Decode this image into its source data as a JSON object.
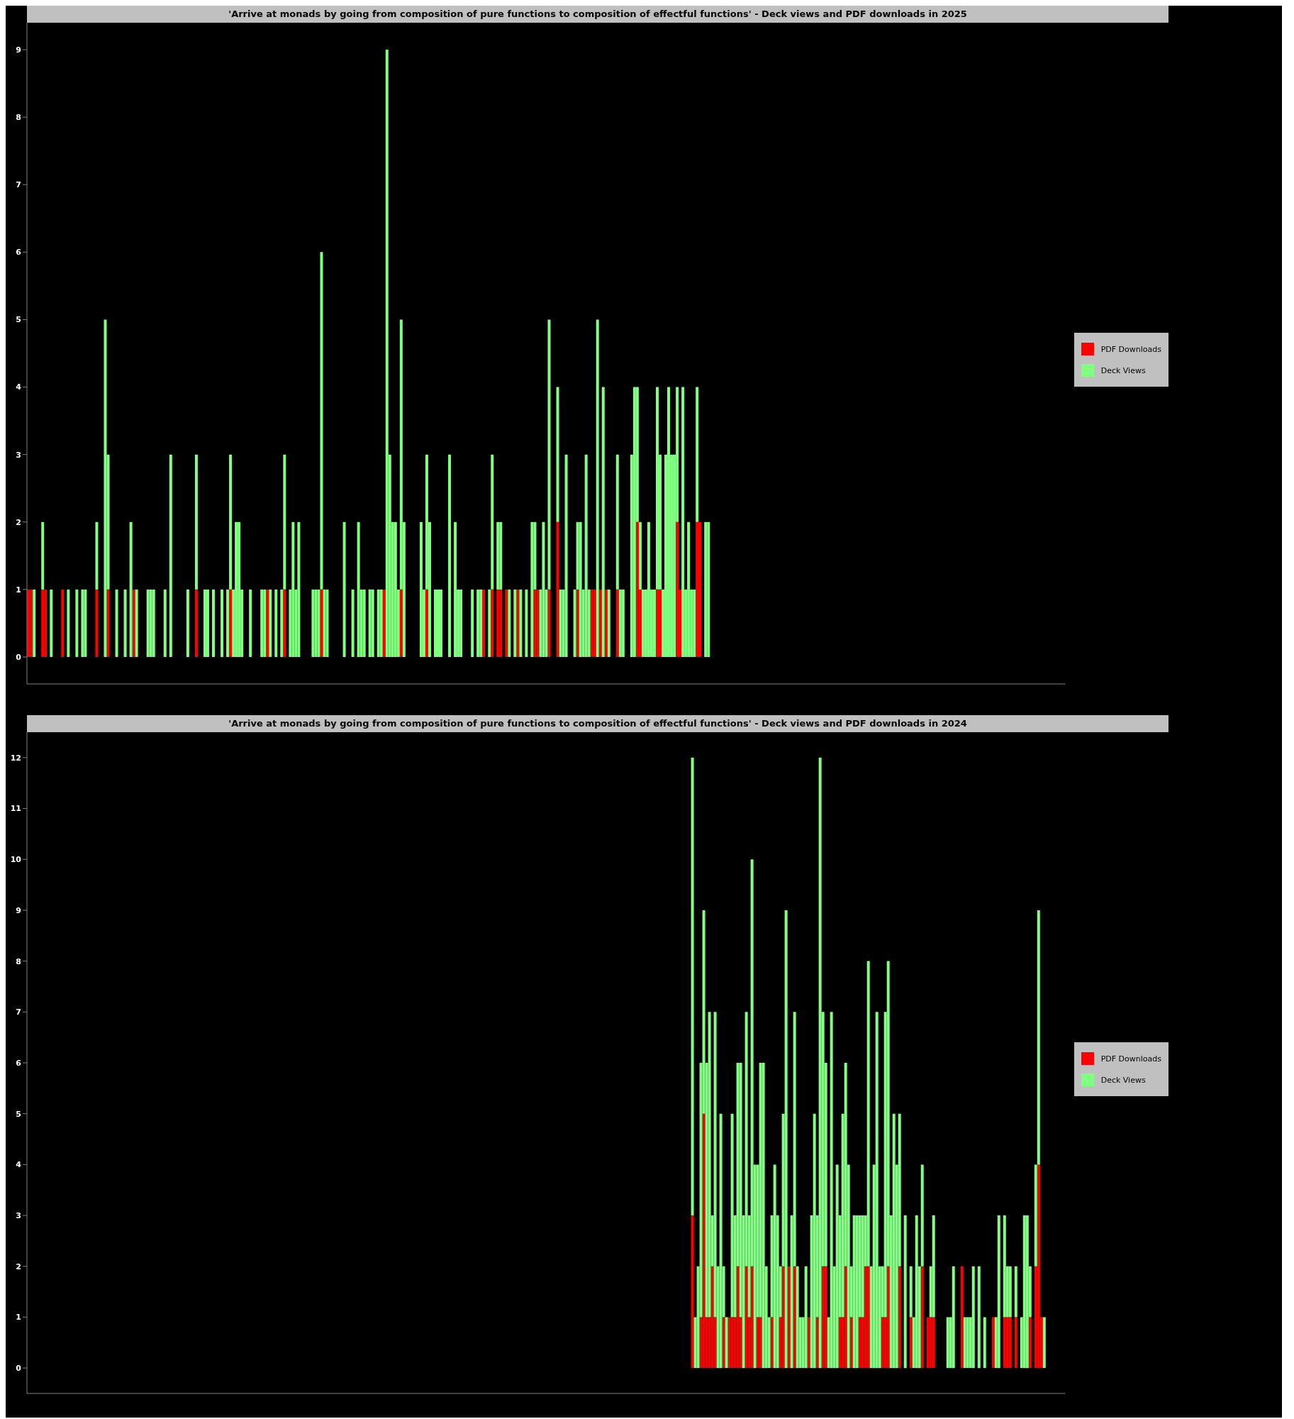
{
  "chart_data": [
    {
      "type": "bar",
      "title": "'Arrive at monads by going from composition of pure functions to composition of effectful functions' - Deck views and PDF downloads in 2025",
      "stacked": true,
      "legend": "right",
      "tick_labels": "y",
      "ylim": [
        -0.4,
        9.4
      ],
      "yticks": [
        0,
        1,
        2,
        3,
        4,
        5,
        6,
        7,
        8,
        9
      ],
      "categories": [
        null,
        null,
        null,
        null,
        null,
        null,
        null,
        null,
        null,
        null,
        null,
        null,
        null,
        null,
        null,
        null,
        null,
        null,
        null,
        null,
        null,
        null,
        null,
        null,
        null,
        null,
        null,
        null,
        null,
        null,
        null,
        null,
        null,
        null,
        null,
        null,
        null,
        null,
        null,
        null,
        null,
        null,
        null,
        null,
        null,
        null,
        null,
        null,
        null,
        null,
        null,
        null,
        null,
        null,
        null,
        null,
        null,
        null,
        null,
        null,
        null,
        null,
        null,
        null,
        null,
        null,
        null,
        null,
        null,
        null,
        null,
        null,
        null,
        null,
        null,
        null,
        null,
        null,
        null,
        null,
        null,
        null,
        null,
        null,
        null,
        null,
        null,
        null,
        null,
        null,
        null,
        null,
        null,
        null,
        null,
        null,
        null,
        null,
        null,
        null,
        null,
        null,
        null,
        null,
        null,
        null,
        null,
        null,
        null,
        null,
        null,
        null,
        null,
        null,
        null,
        null,
        null,
        null,
        null,
        null,
        null,
        null,
        null,
        null,
        null,
        null,
        null,
        null,
        null,
        null,
        null,
        null,
        null,
        null,
        null,
        null,
        null,
        null,
        null,
        null,
        null,
        null,
        null,
        null,
        null,
        null,
        null,
        null,
        null,
        null,
        null,
        null,
        null,
        null,
        null,
        null,
        null,
        null,
        null,
        null,
        null,
        null,
        null,
        null,
        null,
        null,
        null,
        null,
        null,
        null,
        null,
        null,
        null,
        null,
        null,
        null,
        null,
        null,
        null,
        null,
        null,
        null,
        null,
        null,
        null,
        null,
        null,
        null,
        null,
        null,
        null,
        null,
        null,
        null,
        null,
        null,
        null,
        null,
        null,
        null,
        null,
        null,
        null,
        null,
        null,
        null,
        null,
        null,
        null,
        null,
        null,
        null,
        null,
        null,
        null,
        null,
        null,
        null,
        null,
        null,
        null,
        null,
        null,
        null,
        null,
        null,
        null,
        null,
        null,
        null,
        null,
        null,
        null,
        null,
        null,
        null,
        null,
        null,
        null,
        null,
        null,
        null,
        null,
        null,
        null,
        null,
        null,
        null,
        null,
        null,
        null,
        null,
        null,
        null,
        null,
        null,
        null,
        null,
        null,
        null,
        null,
        null,
        null,
        null,
        null,
        null,
        null,
        null,
        null,
        null,
        null,
        null,
        null,
        null,
        null,
        null,
        null,
        null,
        null,
        null,
        null,
        null,
        null,
        null,
        null,
        null,
        null,
        null,
        null,
        null,
        null,
        null,
        null,
        null,
        null,
        null,
        null,
        null,
        null,
        null,
        null,
        null,
        null,
        null,
        null,
        null,
        null,
        null,
        null,
        null,
        null,
        null,
        null,
        null,
        null,
        null,
        null,
        null,
        null,
        null,
        null,
        null,
        null,
        null,
        null,
        null,
        null,
        null,
        null,
        null,
        null,
        null,
        null,
        null,
        null,
        null,
        null,
        null,
        null,
        null,
        null,
        null,
        null,
        null,
        null,
        null,
        null,
        null,
        null,
        null,
        null,
        null,
        null,
        null,
        null,
        null,
        null,
        null,
        null,
        null,
        null,
        null,
        null,
        null,
        null
      ],
      "series": [
        {
          "name": "PDF Downloads",
          "color": "#ff0000",
          "values": [
            1,
            1,
            0,
            0,
            0,
            1,
            1,
            0,
            0,
            0,
            0,
            0,
            1,
            0,
            0,
            0,
            0,
            0,
            0,
            0,
            0,
            0,
            0,
            0,
            1,
            0,
            0,
            0,
            1,
            0,
            0,
            0,
            0,
            0,
            0,
            0,
            0,
            1,
            0,
            0,
            0,
            0,
            0,
            0,
            0,
            0,
            0,
            0,
            0,
            0,
            0,
            0,
            0,
            0,
            0,
            0,
            0,
            0,
            0,
            1,
            0,
            0,
            0,
            0,
            0,
            0,
            0,
            0,
            0,
            0,
            0,
            1,
            0,
            0,
            0,
            0,
            0,
            0,
            0,
            0,
            0,
            0,
            0,
            0,
            1,
            0,
            0,
            0,
            0,
            0,
            1,
            0,
            0,
            0,
            0,
            0,
            0,
            0,
            0,
            0,
            0,
            0,
            0,
            1,
            0,
            0,
            0,
            0,
            0,
            0,
            0,
            0,
            0,
            0,
            0,
            0,
            0,
            0,
            0,
            0,
            0,
            0,
            0,
            0,
            0,
            1,
            0,
            0,
            0,
            0,
            0,
            1,
            0,
            0,
            0,
            0,
            0,
            0,
            0,
            0,
            1,
            0,
            0,
            0,
            0,
            0,
            0,
            0,
            0,
            0,
            0,
            0,
            0,
            0,
            0,
            0,
            0,
            0,
            0,
            0,
            1,
            0,
            0,
            1,
            0,
            1,
            1,
            0,
            1,
            0,
            0,
            0,
            1,
            0,
            0,
            0,
            0,
            0,
            1,
            1,
            0,
            0,
            0,
            1,
            0,
            0,
            2,
            0,
            0,
            0,
            0,
            0,
            0,
            1,
            0,
            0,
            0,
            0,
            1,
            1,
            0,
            1,
            0,
            1,
            0,
            0,
            0,
            1,
            0,
            0,
            0,
            0,
            0,
            0,
            2,
            1,
            0,
            0,
            0,
            0,
            0,
            1,
            1,
            0,
            0,
            0,
            0,
            0,
            2,
            1,
            0,
            0,
            0,
            0,
            0,
            2,
            2,
            0,
            0,
            0,
            null,
            null,
            null,
            null,
            null,
            null,
            null,
            null,
            null,
            null,
            null,
            null,
            null,
            null,
            null,
            null,
            null,
            null,
            null,
            null,
            null,
            null,
            null,
            null,
            null,
            null,
            null,
            null,
            null,
            null,
            null,
            null,
            null,
            null,
            null,
            null,
            null,
            null,
            null,
            null,
            null,
            null,
            null,
            null,
            null,
            null,
            null,
            null,
            null,
            null,
            null,
            null,
            null,
            null,
            null,
            null,
            null,
            null,
            null,
            null,
            null,
            null,
            null,
            null,
            null,
            null,
            null,
            null,
            null,
            null,
            null,
            null,
            null,
            null,
            null,
            null,
            null,
            null,
            null,
            null,
            null,
            null,
            null,
            null,
            null,
            null,
            null,
            null,
            null,
            null,
            null,
            null,
            null,
            null,
            null,
            null,
            null,
            null,
            null,
            null,
            null,
            null,
            null,
            null,
            null,
            null,
            null,
            null,
            null,
            null,
            null,
            null,
            null,
            null,
            null,
            null,
            null,
            null,
            null,
            null,
            null,
            null,
            null,
            null,
            null
          ]
        },
        {
          "name": "Deck Views",
          "color": "#80ff80",
          "values": [
            0,
            0,
            1,
            0,
            0,
            1,
            0,
            0,
            1,
            0,
            0,
            0,
            0,
            0,
            1,
            0,
            0,
            1,
            0,
            1,
            1,
            0,
            0,
            0,
            1,
            0,
            0,
            5,
            2,
            0,
            0,
            1,
            0,
            0,
            1,
            0,
            2,
            0,
            1,
            0,
            0,
            0,
            1,
            1,
            1,
            0,
            0,
            0,
            1,
            0,
            3,
            0,
            0,
            0,
            0,
            0,
            1,
            0,
            0,
            2,
            0,
            0,
            1,
            1,
            0,
            1,
            0,
            0,
            1,
            0,
            1,
            2,
            1,
            2,
            2,
            1,
            0,
            0,
            1,
            0,
            0,
            0,
            1,
            1,
            0,
            1,
            0,
            1,
            0,
            1,
            2,
            0,
            1,
            2,
            1,
            2,
            0,
            0,
            0,
            0,
            1,
            1,
            1,
            5,
            1,
            1,
            0,
            0,
            0,
            0,
            0,
            2,
            0,
            0,
            1,
            0,
            2,
            1,
            1,
            0,
            1,
            1,
            0,
            1,
            1,
            0,
            9,
            3,
            2,
            2,
            1,
            4,
            2,
            0,
            0,
            0,
            0,
            0,
            2,
            1,
            2,
            2,
            0,
            1,
            1,
            1,
            0,
            0,
            3,
            0,
            2,
            1,
            1,
            0,
            0,
            0,
            1,
            0,
            1,
            1,
            0,
            0,
            1,
            2,
            0,
            1,
            1,
            0,
            0,
            1,
            0,
            1,
            0,
            1,
            0,
            1,
            0,
            2,
            1,
            0,
            1,
            2,
            1,
            4,
            0,
            0,
            2,
            1,
            1,
            3,
            0,
            0,
            1,
            1,
            2,
            1,
            3,
            1,
            0,
            0,
            5,
            0,
            4,
            0,
            1,
            0,
            0,
            2,
            1,
            1,
            0,
            0,
            3,
            4,
            2,
            1,
            1,
            1,
            2,
            1,
            1,
            3,
            2,
            1,
            3,
            4,
            3,
            3,
            2,
            0,
            4,
            1,
            2,
            1,
            1,
            2,
            0,
            0,
            2,
            2,
            null,
            null,
            null,
            null,
            null,
            null,
            null,
            null,
            null,
            null,
            null,
            null,
            null,
            null,
            null,
            null,
            null,
            null,
            null,
            null,
            null,
            null,
            null,
            null,
            null,
            null,
            null,
            null,
            null,
            null,
            null,
            null,
            null,
            null,
            null,
            null,
            null,
            null,
            null,
            null,
            null,
            null,
            null,
            null,
            null,
            null,
            null,
            null,
            null,
            null,
            null,
            null,
            null,
            null,
            null,
            null,
            null,
            null,
            null,
            null,
            null,
            null,
            null,
            null,
            null,
            null,
            null,
            null,
            null,
            null,
            null,
            null,
            null,
            null,
            null,
            null,
            null,
            null,
            null,
            null,
            null,
            null,
            null,
            null,
            null,
            null,
            null,
            null,
            null,
            null,
            null,
            null,
            null,
            null,
            null,
            null,
            null,
            null,
            null,
            null,
            null,
            null,
            null,
            null,
            null,
            null,
            null,
            null,
            null,
            null,
            null,
            null,
            null,
            null,
            null,
            null,
            null,
            null,
            null,
            null,
            null,
            null,
            null,
            null,
            null
          ]
        }
      ]
    },
    {
      "type": "bar",
      "title": "'Arrive at monads by going from composition of pure functions to composition of effectful functions' - Deck views and PDF downloads in 2024",
      "stacked": true,
      "legend": "right",
      "tick_labels": "y",
      "ylim": [
        -0.5,
        12.5
      ],
      "yticks": [
        0,
        1,
        2,
        3,
        4,
        5,
        6,
        7,
        8,
        9,
        10,
        11,
        12
      ],
      "categories": [
        null,
        null,
        null,
        null,
        null,
        null,
        null,
        null,
        null,
        null,
        null,
        null,
        null,
        null,
        null,
        null,
        null,
        null,
        null,
        null,
        null,
        null,
        null,
        null,
        null,
        null,
        null,
        null,
        null,
        null,
        null,
        null,
        null,
        null,
        null,
        null,
        null,
        null,
        null,
        null,
        null,
        null,
        null,
        null,
        null,
        null,
        null,
        null,
        null,
        null,
        null,
        null,
        null,
        null,
        null,
        null,
        null,
        null,
        null,
        null,
        null,
        null,
        null,
        null,
        null,
        null,
        null,
        null,
        null,
        null,
        null,
        null,
        null,
        null,
        null,
        null,
        null,
        null,
        null,
        null,
        null,
        null,
        null,
        null,
        null,
        null,
        null,
        null,
        null,
        null,
        null,
        null,
        null,
        null,
        null,
        null,
        null,
        null,
        null,
        null,
        null,
        null,
        null,
        null,
        null,
        null,
        null,
        null,
        null,
        null,
        null,
        null,
        null,
        null,
        null,
        null,
        null,
        null,
        null,
        null,
        null,
        null,
        null,
        null,
        null,
        null,
        null,
        null,
        null,
        null,
        null,
        null,
        null,
        null,
        null,
        null,
        null,
        null,
        null,
        null,
        null,
        null,
        null,
        null,
        null,
        null,
        null,
        null,
        null,
        null,
        null,
        null,
        null,
        null,
        null,
        null,
        null,
        null,
        null,
        null,
        null,
        null,
        null,
        null,
        null,
        null,
        null,
        null,
        null,
        null,
        null,
        null,
        null,
        null,
        null,
        null,
        null,
        null,
        null,
        null,
        null,
        null,
        null,
        null,
        null,
        null,
        null,
        null,
        null,
        null,
        null,
        null,
        null,
        null,
        null,
        null,
        null,
        null,
        null,
        null,
        null,
        null,
        null,
        null,
        null,
        null,
        null,
        null,
        null,
        null,
        null,
        null,
        null,
        null,
        null,
        null,
        null,
        null,
        null,
        null,
        null,
        null,
        null,
        null,
        null,
        null,
        null,
        null,
        null,
        null,
        null,
        null,
        null,
        null,
        null,
        null,
        null,
        null,
        null,
        null,
        null,
        null,
        null,
        null,
        null,
        null,
        null,
        null,
        null,
        null,
        null,
        null,
        null,
        null,
        null,
        null,
        null,
        null,
        null,
        null,
        null,
        null,
        null,
        null,
        null,
        null,
        null,
        null,
        null,
        null,
        null,
        null,
        null,
        null,
        null,
        null,
        null,
        null,
        null,
        null,
        null,
        null,
        null,
        null,
        null,
        null,
        null,
        null,
        null,
        null,
        null,
        null,
        null,
        null,
        null,
        null,
        null,
        null,
        null,
        null,
        null,
        null,
        null,
        null,
        null,
        null,
        null,
        null,
        null,
        null,
        null,
        null,
        null,
        null,
        null,
        null,
        null,
        null,
        null,
        null,
        null,
        null,
        null,
        null,
        null,
        null,
        null,
        null,
        null,
        null,
        null,
        null,
        null,
        null,
        null,
        null,
        null,
        null,
        null,
        null,
        null,
        null,
        null,
        null,
        null,
        null,
        null,
        null,
        null,
        null,
        null,
        null,
        null,
        null,
        null,
        null,
        null,
        null,
        null,
        null,
        null,
        null,
        null,
        null,
        null,
        null
      ],
      "series": [
        {
          "name": "PDF Downloads",
          "color": "#ff0000",
          "values": [
            null,
            null,
            null,
            null,
            null,
            null,
            null,
            null,
            null,
            null,
            null,
            null,
            null,
            null,
            null,
            null,
            null,
            null,
            null,
            null,
            null,
            null,
            null,
            null,
            null,
            null,
            null,
            null,
            null,
            null,
            null,
            null,
            null,
            null,
            null,
            null,
            null,
            null,
            null,
            null,
            null,
            null,
            null,
            null,
            null,
            null,
            null,
            null,
            null,
            null,
            null,
            null,
            null,
            null,
            null,
            null,
            null,
            null,
            null,
            null,
            null,
            null,
            null,
            null,
            null,
            null,
            null,
            null,
            null,
            null,
            null,
            null,
            null,
            null,
            null,
            null,
            null,
            null,
            null,
            null,
            null,
            null,
            null,
            null,
            null,
            null,
            null,
            null,
            null,
            null,
            null,
            null,
            null,
            null,
            null,
            null,
            null,
            null,
            null,
            null,
            null,
            null,
            null,
            null,
            null,
            null,
            null,
            null,
            null,
            null,
            null,
            null,
            null,
            null,
            null,
            null,
            null,
            null,
            null,
            null,
            null,
            null,
            null,
            null,
            null,
            null,
            null,
            null,
            null,
            null,
            null,
            null,
            null,
            null,
            null,
            null,
            null,
            null,
            null,
            null,
            null,
            null,
            null,
            null,
            null,
            null,
            null,
            null,
            null,
            null,
            null,
            null,
            null,
            null,
            null,
            null,
            null,
            null,
            null,
            null,
            null,
            null,
            null,
            null,
            null,
            null,
            null,
            null,
            null,
            null,
            null,
            null,
            null,
            null,
            null,
            null,
            null,
            null,
            null,
            null,
            null,
            null,
            null,
            null,
            null,
            null,
            null,
            null,
            null,
            null,
            null,
            null,
            null,
            null,
            null,
            null,
            null,
            null,
            null,
            null,
            null,
            null,
            null,
            null,
            null,
            null,
            null,
            null,
            null,
            null,
            null,
            null,
            null,
            null,
            null,
            null,
            null,
            null,
            null,
            null,
            null,
            null,
            null,
            null,
            null,
            null,
            null,
            null,
            null,
            null,
            null,
            null,
            null,
            null,
            3,
            0,
            0,
            1,
            5,
            1,
            1,
            2,
            1,
            0,
            0,
            1,
            0,
            1,
            1,
            1,
            2,
            1,
            0,
            2,
            1,
            2,
            0,
            1,
            1,
            0,
            0,
            0,
            1,
            0,
            0,
            1,
            2,
            0,
            2,
            0,
            2,
            0,
            0,
            0,
            0,
            1,
            0,
            0,
            1,
            0,
            2,
            2,
            0,
            0,
            0,
            0,
            1,
            1,
            2,
            0,
            1,
            0,
            0,
            1,
            1,
            2,
            2,
            0,
            0,
            0,
            0,
            1,
            1,
            2,
            0,
            0,
            0,
            2,
            0,
            0,
            0,
            1,
            0,
            0,
            0,
            2,
            0,
            1,
            1,
            1,
            0,
            0,
            0,
            0,
            0,
            0,
            0,
            0,
            0,
            2,
            0,
            0,
            0,
            0,
            0,
            0,
            0,
            0,
            0,
            0,
            1,
            0,
            0,
            0,
            1,
            1,
            1,
            0,
            1,
            0,
            0,
            0,
            0,
            1,
            0,
            2,
            4,
            1,
            0,
            null,
            null,
            null,
            null,
            null,
            null,
            null
          ]
        },
        {
          "name": "Deck Views",
          "color": "#80ff80",
          "values": [
            null,
            null,
            null,
            null,
            null,
            null,
            null,
            null,
            null,
            null,
            null,
            null,
            null,
            null,
            null,
            null,
            null,
            null,
            null,
            null,
            null,
            null,
            null,
            null,
            null,
            null,
            null,
            null,
            null,
            null,
            null,
            null,
            null,
            null,
            null,
            null,
            null,
            null,
            null,
            null,
            null,
            null,
            null,
            null,
            null,
            null,
            null,
            null,
            null,
            null,
            null,
            null,
            null,
            null,
            null,
            null,
            null,
            null,
            null,
            null,
            null,
            null,
            null,
            null,
            null,
            null,
            null,
            null,
            null,
            null,
            null,
            null,
            null,
            null,
            null,
            null,
            null,
            null,
            null,
            null,
            null,
            null,
            null,
            null,
            null,
            null,
            null,
            null,
            null,
            null,
            null,
            null,
            null,
            null,
            null,
            null,
            null,
            null,
            null,
            null,
            null,
            null,
            null,
            null,
            null,
            null,
            null,
            null,
            null,
            null,
            null,
            null,
            null,
            null,
            null,
            null,
            null,
            null,
            null,
            null,
            null,
            null,
            null,
            null,
            null,
            null,
            null,
            null,
            null,
            null,
            null,
            null,
            null,
            null,
            null,
            null,
            null,
            null,
            null,
            null,
            null,
            null,
            null,
            null,
            null,
            null,
            null,
            null,
            null,
            null,
            null,
            null,
            null,
            null,
            null,
            null,
            null,
            null,
            null,
            null,
            null,
            null,
            null,
            null,
            null,
            null,
            null,
            null,
            null,
            null,
            null,
            null,
            null,
            null,
            null,
            null,
            null,
            null,
            null,
            null,
            null,
            null,
            null,
            null,
            null,
            null,
            null,
            null,
            null,
            null,
            null,
            null,
            null,
            null,
            null,
            null,
            null,
            null,
            null,
            null,
            null,
            null,
            null,
            null,
            null,
            null,
            null,
            null,
            null,
            null,
            null,
            null,
            null,
            null,
            null,
            null,
            null,
            null,
            null,
            null,
            null,
            null,
            null,
            null,
            null,
            null,
            null,
            null,
            null,
            null,
            null,
            null,
            null,
            null,
            9,
            1,
            2,
            5,
            4,
            5,
            6,
            1,
            6,
            2,
            5,
            1,
            1,
            0,
            4,
            2,
            4,
            5,
            3,
            5,
            2,
            8,
            4,
            3,
            5,
            6,
            2,
            1,
            2,
            4,
            3,
            1,
            3,
            9,
            0,
            3,
            5,
            2,
            1,
            1,
            2,
            0,
            3,
            5,
            2,
            12,
            5,
            4,
            1,
            7,
            2,
            4,
            2,
            4,
            4,
            4,
            1,
            3,
            3,
            2,
            2,
            1,
            6,
            2,
            4,
            7,
            2,
            1,
            6,
            6,
            3,
            5,
            4,
            3,
            0,
            3,
            0,
            1,
            1,
            3,
            2,
            2,
            0,
            0,
            1,
            2,
            0,
            0,
            0,
            0,
            1,
            1,
            2,
            0,
            0,
            0,
            1,
            1,
            1,
            2,
            0,
            2,
            0,
            1,
            0,
            0,
            0,
            1,
            3,
            0,
            2,
            1,
            1,
            0,
            1,
            0,
            1,
            3,
            3,
            1,
            0,
            2,
            5,
            0,
            1,
            null,
            null,
            null,
            null,
            null,
            null,
            null
          ]
        }
      ]
    }
  ]
}
